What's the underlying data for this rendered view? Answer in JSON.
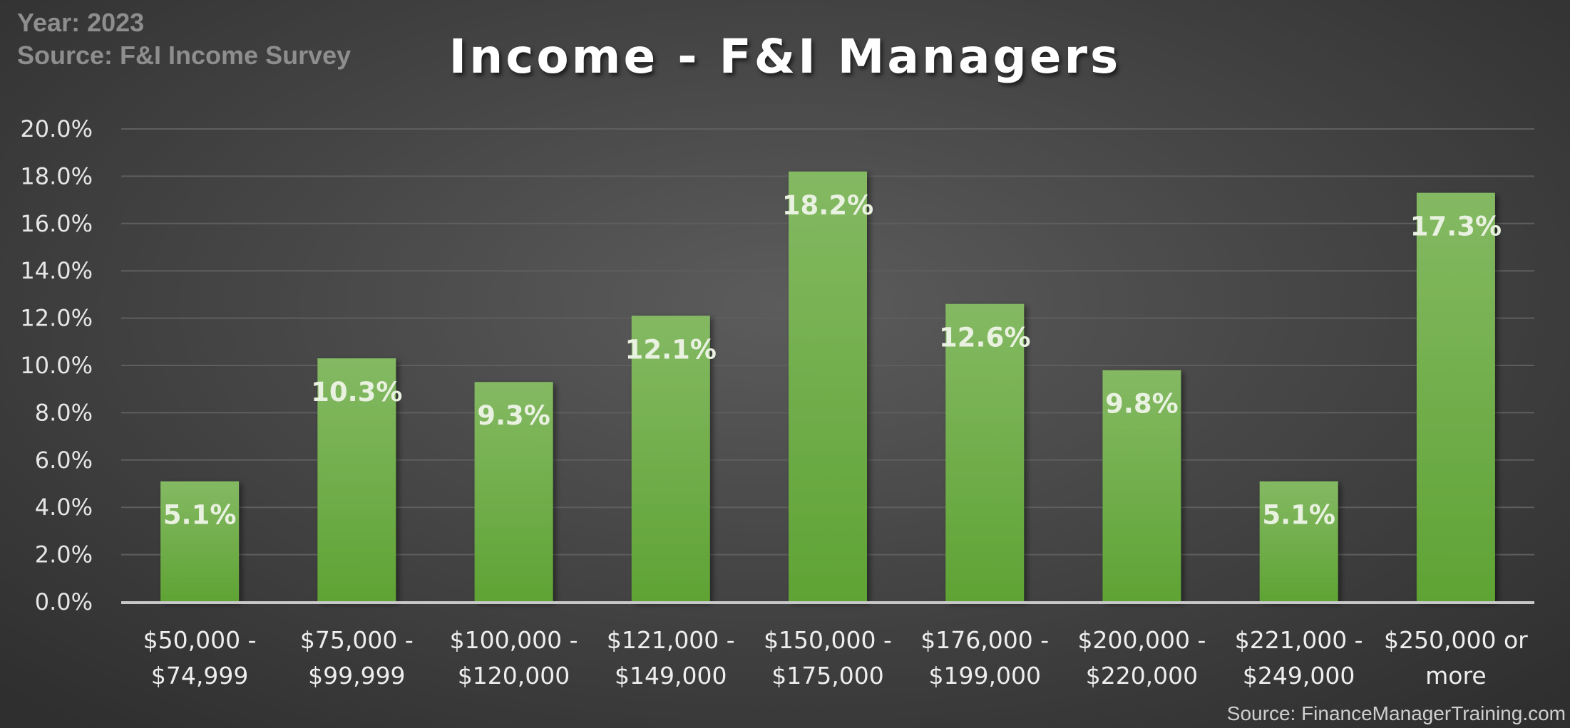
{
  "header": {
    "year_line": "Year: 2023",
    "source_line": "Source: F&I Income Survey"
  },
  "footer": {
    "source": "Source: FinanceManagerTraining.com"
  },
  "colors": {
    "bar_top": "#84b963",
    "bar_bottom": "#5fa334",
    "grid": "#5e5e5e",
    "axis": "#c8c8c8"
  },
  "chart_data": {
    "type": "bar",
    "title": "Income - F&I Managers",
    "xlabel": "",
    "ylabel": "",
    "ylim": [
      0,
      20
    ],
    "yticks": [
      0,
      2,
      4,
      6,
      8,
      10,
      12,
      14,
      16,
      18,
      20
    ],
    "ytick_labels": [
      "0.0%",
      "2.0%",
      "4.0%",
      "6.0%",
      "8.0%",
      "10.0%",
      "12.0%",
      "14.0%",
      "16.0%",
      "18.0%",
      "20.0%"
    ],
    "grid": true,
    "legend": "none",
    "categories": [
      [
        "$50,000 -",
        "$74,999"
      ],
      [
        "$75,000 -",
        "$99,999"
      ],
      [
        "$100,000 -",
        "$120,000"
      ],
      [
        "$121,000 -",
        "$149,000"
      ],
      [
        "$150,000 -",
        "$175,000"
      ],
      [
        "$176,000 -",
        "$199,000"
      ],
      [
        "$200,000 -",
        "$220,000"
      ],
      [
        "$221,000 -",
        "$249,000"
      ],
      [
        "$250,000 or",
        "more"
      ]
    ],
    "values": [
      5.1,
      10.3,
      9.3,
      12.1,
      18.2,
      12.6,
      9.8,
      5.1,
      17.3
    ],
    "data_labels": [
      "5.1%",
      "10.3%",
      "9.3%",
      "12.1%",
      "18.2%",
      "12.6%",
      "9.8%",
      "5.1%",
      "17.3%"
    ]
  }
}
